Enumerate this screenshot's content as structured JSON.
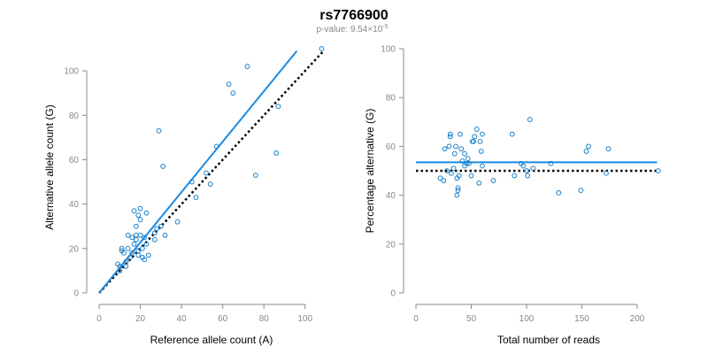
{
  "title": "rs7766900",
  "subtitle_prefix": "p-value: 9.54×10",
  "subtitle_exponent": "-5",
  "colors": {
    "points": "#1a7fc9",
    "fit_line": "#1a8ae0",
    "reference_line": "#000000",
    "axis": "#888888"
  },
  "chart_data": [
    {
      "type": "scatter",
      "xlabel": "Reference allele count (A)",
      "ylabel": "Alternative allele count (G)",
      "xlim": [
        0,
        110
      ],
      "ylim": [
        0,
        110
      ],
      "xticks": [
        0,
        20,
        40,
        60,
        80,
        100
      ],
      "yticks": [
        0,
        20,
        40,
        60,
        80,
        100
      ],
      "grid": false,
      "points": [
        [
          9,
          13
        ],
        [
          10,
          12
        ],
        [
          10,
          10
        ],
        [
          11,
          19
        ],
        [
          11,
          20
        ],
        [
          12,
          18
        ],
        [
          13,
          14
        ],
        [
          13,
          12
        ],
        [
          14,
          26
        ],
        [
          14,
          20
        ],
        [
          15,
          16
        ],
        [
          16,
          25
        ],
        [
          16,
          18
        ],
        [
          17,
          22
        ],
        [
          17,
          37
        ],
        [
          18,
          30
        ],
        [
          18,
          24
        ],
        [
          18,
          26
        ],
        [
          19,
          35
        ],
        [
          19,
          19
        ],
        [
          19,
          17
        ],
        [
          20,
          38
        ],
        [
          20,
          33
        ],
        [
          20,
          26
        ],
        [
          21,
          20
        ],
        [
          21,
          16
        ],
        [
          22,
          15
        ],
        [
          22,
          25
        ],
        [
          23,
          22
        ],
        [
          23,
          36
        ],
        [
          24,
          17
        ],
        [
          27,
          24
        ],
        [
          27,
          27
        ],
        [
          28,
          29
        ],
        [
          29,
          73
        ],
        [
          30,
          30
        ],
        [
          31,
          57
        ],
        [
          32,
          26
        ],
        [
          38,
          32
        ],
        [
          45,
          50
        ],
        [
          47,
          43
        ],
        [
          52,
          54
        ],
        [
          54,
          49
        ],
        [
          57,
          66
        ],
        [
          63,
          94
        ],
        [
          65,
          90
        ],
        [
          72,
          102
        ],
        [
          76,
          53
        ],
        [
          86,
          63
        ],
        [
          87,
          84
        ],
        [
          108,
          110
        ]
      ],
      "fit_line": {
        "x": [
          0,
          96
        ],
        "y": [
          0,
          109
        ]
      },
      "reference_line": {
        "x": [
          0,
          109
        ],
        "y": [
          0,
          109
        ]
      }
    },
    {
      "type": "scatter",
      "xlabel": "Total number of reads",
      "ylabel": "Percentage alternative (G)",
      "xlim": [
        0,
        220
      ],
      "ylim": [
        0,
        100
      ],
      "xticks": [
        0,
        50,
        100,
        150,
        200
      ],
      "yticks": [
        0,
        20,
        40,
        60,
        80,
        100
      ],
      "grid": false,
      "points": [
        [
          22,
          47
        ],
        [
          25,
          46
        ],
        [
          26,
          59
        ],
        [
          28,
          50
        ],
        [
          30,
          60
        ],
        [
          31,
          64
        ],
        [
          31,
          65
        ],
        [
          32,
          49
        ],
        [
          34,
          51
        ],
        [
          35,
          57
        ],
        [
          36,
          60
        ],
        [
          37,
          40
        ],
        [
          37,
          47
        ],
        [
          38,
          43
        ],
        [
          38,
          42
        ],
        [
          39,
          48
        ],
        [
          40,
          65
        ],
        [
          41,
          59
        ],
        [
          42,
          54
        ],
        [
          44,
          52
        ],
        [
          44,
          57
        ],
        [
          46,
          53
        ],
        [
          47,
          55
        ],
        [
          48,
          53
        ],
        [
          50,
          48
        ],
        [
          51,
          62
        ],
        [
          52,
          62
        ],
        [
          53,
          64
        ],
        [
          55,
          67
        ],
        [
          57,
          45
        ],
        [
          58,
          62
        ],
        [
          59,
          58
        ],
        [
          60,
          52
        ],
        [
          60,
          65
        ],
        [
          70,
          46
        ],
        [
          87,
          65
        ],
        [
          89,
          48
        ],
        [
          95,
          53
        ],
        [
          97,
          52
        ],
        [
          100,
          50
        ],
        [
          101,
          48
        ],
        [
          103,
          71
        ],
        [
          106,
          51
        ],
        [
          122,
          53
        ],
        [
          129,
          41
        ],
        [
          149,
          42
        ],
        [
          154,
          58
        ],
        [
          156,
          60
        ],
        [
          172,
          49
        ],
        [
          174,
          59
        ],
        [
          219,
          50
        ]
      ],
      "fit_line": {
        "x": [
          0,
          218
        ],
        "y": [
          53.5,
          53.5
        ]
      },
      "reference_line": {
        "x": [
          0,
          218
        ],
        "y": [
          50,
          50
        ]
      }
    }
  ]
}
